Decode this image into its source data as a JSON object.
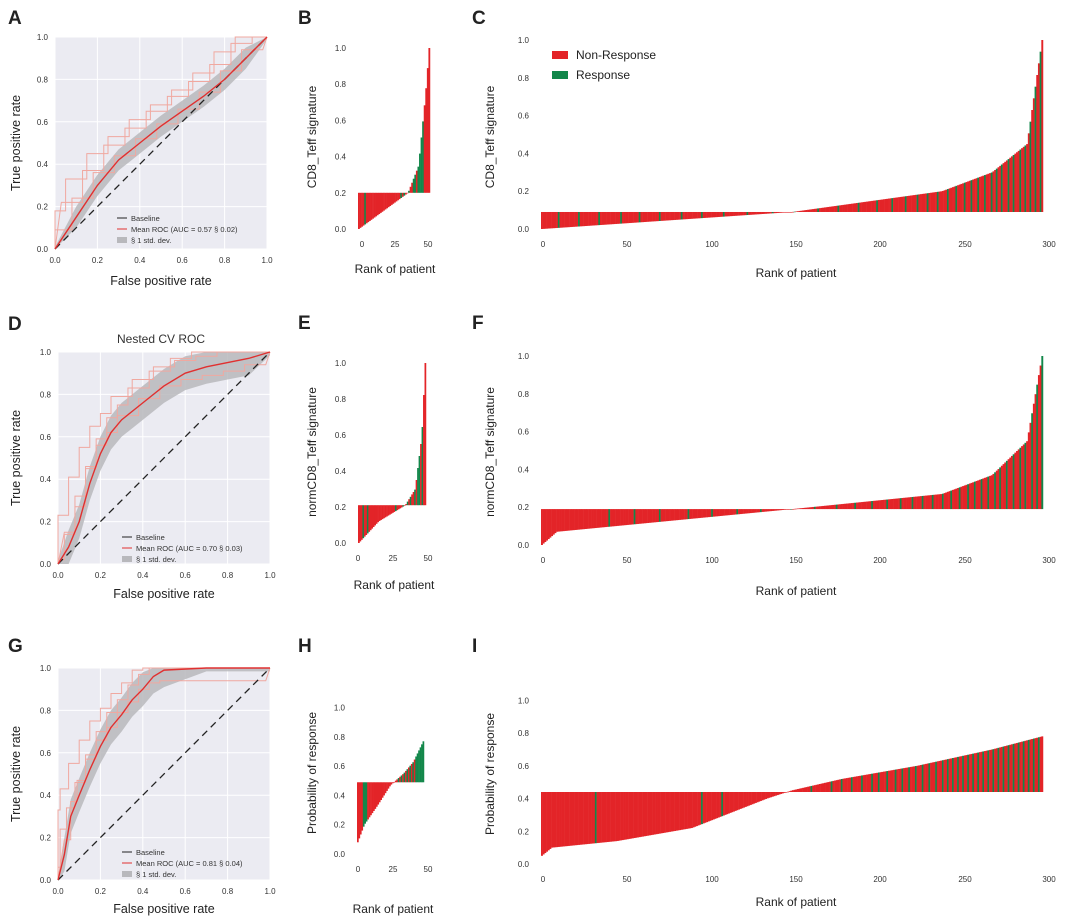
{
  "colors": {
    "non_response": "#e32428",
    "response": "#12874a",
    "roc_mean": "#e03030",
    "roc_fold": "#f0a8a0",
    "band": "#b8b8bc",
    "baseline": "#222222",
    "panel_bg": "#ebebf2"
  },
  "chart_data": [
    {
      "panel": "A",
      "type": "line",
      "title": "",
      "xlabel": "False positive rate",
      "ylabel": "True positive rate",
      "xlim": [
        0,
        1
      ],
      "ylim": [
        0,
        1
      ],
      "grid": true,
      "xticks": [
        "0.0",
        "0.2",
        "0.4",
        "0.6",
        "0.8",
        "1.0"
      ],
      "yticks": [
        "0.0",
        "0.2",
        "0.4",
        "0.6",
        "0.8",
        "1.0"
      ],
      "legend_position": "bottom-right",
      "legend": [
        "Baseline",
        "Mean ROC (AUC = 0.57 § 0.02)",
        "§ 1 std. dev."
      ],
      "mean_roc": {
        "x": [
          0,
          0.1,
          0.2,
          0.3,
          0.4,
          0.5,
          0.6,
          0.7,
          0.8,
          0.9,
          1.0
        ],
        "y": [
          0,
          0.15,
          0.3,
          0.42,
          0.5,
          0.58,
          0.65,
          0.72,
          0.8,
          0.9,
          1.0
        ]
      },
      "band_half_width": 0.05
    },
    {
      "panel": "B",
      "type": "bar",
      "xlabel": "Rank of patient",
      "ylabel": "CD8_Teff signature",
      "xlim": [
        0,
        48
      ],
      "ylim": [
        0,
        1.0
      ],
      "baseline": 0.2,
      "n": 46,
      "xticks": [
        "0",
        "25",
        "50"
      ],
      "yticks": [
        "0.0",
        "0.2",
        "0.4",
        "0.6",
        "0.8",
        "1.0"
      ],
      "curve": {
        "x": [
          0,
          0.35,
          0.7,
          0.85,
          0.95,
          1.0
        ],
        "y": [
          0.0,
          0.1,
          0.2,
          0.35,
          0.75,
          1.0
        ]
      },
      "response_ranks": [
        4,
        27,
        29,
        32,
        35,
        36,
        38,
        39,
        40,
        41
      ]
    },
    {
      "panel": "C",
      "type": "bar",
      "xlabel": "Rank of patient",
      "ylabel": "CD8_Teff signature",
      "xlim": [
        0,
        300
      ],
      "ylim": [
        0,
        1.0
      ],
      "baseline": 0.09,
      "n": 298,
      "xticks": [
        "0",
        "50",
        "100",
        "150",
        "200",
        "250",
        "300"
      ],
      "yticks": [
        "0.0",
        "0.2",
        "0.4",
        "0.6",
        "0.8",
        "1.0"
      ],
      "legend_position": "top-left",
      "legend": [
        "Non-Response",
        "Response"
      ],
      "curve": {
        "x": [
          0,
          0.5,
          0.8,
          0.9,
          0.97,
          1.0
        ],
        "y": [
          0.0,
          0.09,
          0.2,
          0.3,
          0.45,
          1.0
        ]
      },
      "response_ranks": [
        10,
        22,
        34,
        47,
        58,
        70,
        83,
        95,
        108,
        122,
        137,
        150,
        164,
        176,
        188,
        199,
        208,
        216,
        223,
        229,
        235,
        241,
        246,
        251,
        255,
        259,
        263,
        267,
        270,
        273,
        277,
        280,
        284,
        287,
        290,
        293,
        296
      ]
    },
    {
      "panel": "D",
      "type": "line",
      "title": "Nested CV ROC",
      "xlabel": "False positive rate",
      "ylabel": "True positive rate",
      "xlim": [
        0,
        1
      ],
      "ylim": [
        0,
        1
      ],
      "grid": true,
      "xticks": [
        "0.0",
        "0.2",
        "0.4",
        "0.6",
        "0.8",
        "1.0"
      ],
      "yticks": [
        "0.0",
        "0.2",
        "0.4",
        "0.6",
        "0.8",
        "1.0"
      ],
      "legend_position": "bottom-right",
      "legend": [
        "Baseline",
        "Mean ROC (AUC = 0.70 § 0.03)",
        "§ 1 std. dev."
      ],
      "mean_roc": {
        "x": [
          0,
          0.05,
          0.1,
          0.15,
          0.2,
          0.25,
          0.3,
          0.4,
          0.5,
          0.6,
          0.7,
          0.8,
          0.9,
          1.0
        ],
        "y": [
          0,
          0.08,
          0.2,
          0.38,
          0.52,
          0.62,
          0.68,
          0.76,
          0.84,
          0.9,
          0.93,
          0.95,
          0.97,
          1.0
        ]
      },
      "band_half_width": 0.08
    },
    {
      "panel": "E",
      "type": "bar",
      "xlabel": "Rank of patient",
      "ylabel": "normCD8_Teff signature",
      "xlim": [
        0,
        48
      ],
      "ylim": [
        0,
        1.0
      ],
      "baseline": 0.21,
      "n": 46,
      "xticks": [
        "0",
        "25",
        "50"
      ],
      "yticks": [
        "0.0",
        "0.2",
        "0.4",
        "0.6",
        "0.8",
        "1.0"
      ],
      "curve": {
        "x": [
          0,
          0.3,
          0.7,
          0.85,
          0.95,
          1.0
        ],
        "y": [
          0.0,
          0.12,
          0.21,
          0.3,
          0.6,
          1.0
        ]
      },
      "response_ranks": [
        3,
        6,
        25,
        30,
        33,
        35,
        38,
        40,
        41,
        43
      ]
    },
    {
      "panel": "F",
      "type": "bar",
      "xlabel": "Rank of patient",
      "ylabel": "normCD8_Teff signature",
      "xlim": [
        0,
        300
      ],
      "ylim": [
        0,
        1.0
      ],
      "baseline": 0.19,
      "n": 298,
      "xticks": [
        "0",
        "50",
        "100",
        "150",
        "200",
        "250",
        "300"
      ],
      "yticks": [
        "0.0",
        "0.2",
        "0.4",
        "0.6",
        "0.8",
        "1.0"
      ],
      "curve": {
        "x": [
          0,
          0.03,
          0.5,
          0.8,
          0.9,
          0.97,
          1.0
        ],
        "y": [
          0.0,
          0.07,
          0.19,
          0.27,
          0.37,
          0.55,
          1.0
        ]
      },
      "response_ranks": [
        40,
        55,
        70,
        87,
        101,
        116,
        130,
        148,
        162,
        175,
        186,
        196,
        205,
        213,
        220,
        226,
        232,
        238,
        243,
        248,
        253,
        257,
        261,
        265,
        269,
        272,
        276,
        280,
        284,
        287,
        291,
        294,
        297
      ]
    },
    {
      "panel": "G",
      "type": "line",
      "title": "",
      "xlabel": "False positive rate",
      "ylabel": "True positive rate",
      "xlim": [
        0,
        1
      ],
      "ylim": [
        0,
        1
      ],
      "grid": true,
      "xticks": [
        "0.0",
        "0.2",
        "0.4",
        "0.6",
        "0.8",
        "1.0"
      ],
      "yticks": [
        "0.0",
        "0.2",
        "0.4",
        "0.6",
        "0.8",
        "1.0"
      ],
      "legend_position": "bottom-right",
      "legend": [
        "Baseline",
        "Mean ROC (AUC = 0.81 § 0.04)",
        "§ 1 std. dev."
      ],
      "mean_roc": {
        "x": [
          0,
          0.03,
          0.06,
          0.1,
          0.15,
          0.2,
          0.25,
          0.3,
          0.35,
          0.4,
          0.45,
          0.5,
          0.7,
          1.0
        ],
        "y": [
          0,
          0.12,
          0.3,
          0.4,
          0.52,
          0.63,
          0.72,
          0.78,
          0.85,
          0.9,
          0.96,
          0.99,
          1.0,
          1.0
        ]
      },
      "band_half_width": 0.08
    },
    {
      "panel": "H",
      "type": "bar",
      "xlabel": "Rank of patient",
      "ylabel": "Probability of response",
      "xlim": [
        0,
        48
      ],
      "ylim": [
        0,
        1.1
      ],
      "baseline": 0.49,
      "n": 46,
      "xticks": [
        "0",
        "25",
        "50"
      ],
      "yticks": [
        "0.0",
        "0.2",
        "0.4",
        "0.6",
        "0.8",
        "1.0"
      ],
      "curve": {
        "x": [
          0,
          0.1,
          0.3,
          0.5,
          0.7,
          0.85,
          1.0
        ],
        "y": [
          0.08,
          0.2,
          0.33,
          0.47,
          0.55,
          0.63,
          0.77
        ]
      },
      "response_ranks": [
        4,
        5,
        6,
        28,
        30,
        32,
        34,
        36,
        38,
        40,
        41,
        42,
        43,
        44,
        45
      ]
    },
    {
      "panel": "I",
      "type": "bar",
      "xlabel": "Rank of patient",
      "ylabel": "Probability of response",
      "xlim": [
        0,
        300
      ],
      "ylim": [
        0,
        1.1
      ],
      "baseline": 0.44,
      "n": 298,
      "xticks": [
        "0",
        "50",
        "100",
        "150",
        "200",
        "250",
        "300"
      ],
      "yticks": [
        "0.0",
        "0.2",
        "0.4",
        "0.6",
        "0.8",
        "1.0"
      ],
      "curve": {
        "x": [
          0,
          0.02,
          0.15,
          0.3,
          0.45,
          0.5,
          0.6,
          0.75,
          0.9,
          1.0
        ],
        "y": [
          0.05,
          0.1,
          0.14,
          0.22,
          0.4,
          0.45,
          0.52,
          0.6,
          0.7,
          0.78
        ]
      },
      "response_ranks": [
        32,
        95,
        107,
        160,
        172,
        178,
        184,
        190,
        196,
        200,
        205,
        210,
        214,
        218,
        222,
        226,
        230,
        234,
        238,
        241,
        244,
        247,
        250,
        253,
        256,
        259,
        262,
        265,
        268,
        271,
        274,
        277,
        280,
        283,
        286,
        289,
        292,
        295
      ]
    }
  ]
}
